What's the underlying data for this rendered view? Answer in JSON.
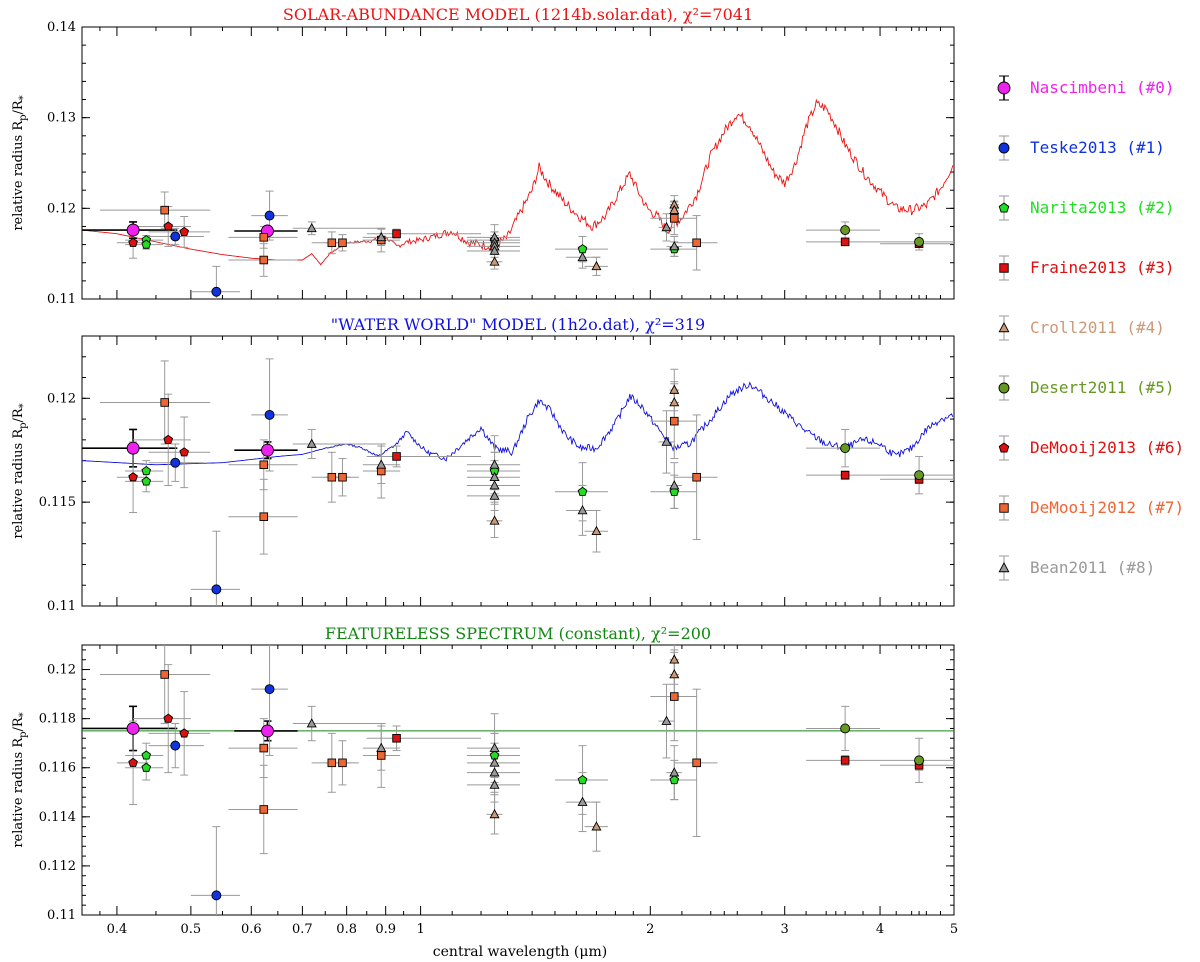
{
  "figure": {
    "xlabel": "central wavelength (μm)",
    "ylabel": "relative radius R",
    "ylabel_sub": "p",
    "ylabel_tail": "/R",
    "ylabel_sub2": "*"
  },
  "colors": {
    "solar": "#ee1111",
    "water": "#1111dd",
    "flat": "#118811",
    "Nascimbeni": "#ee22ee",
    "Teske2013": "#1133dd",
    "Narita2013": "#22dd22",
    "Fraine2013": "#dd1111",
    "Croll2011": "#cc9977",
    "Desert2011": "#669922",
    "DeMooij2013": "#dd1111",
    "DeMooij2012": "#ee6633",
    "Bean2011": "#999999"
  },
  "legend": [
    {
      "key": "Nascimbeni",
      "label": "Nascimbeni (#0)",
      "marker": "circle-big"
    },
    {
      "key": "Teske2013",
      "label": "Teske2013 (#1)",
      "marker": "circle"
    },
    {
      "key": "Narita2013",
      "label": "Narita2013 (#2)",
      "marker": "pentagon"
    },
    {
      "key": "Fraine2013",
      "label": "Fraine2013 (#3)",
      "marker": "square"
    },
    {
      "key": "Croll2011",
      "label": "Croll2011 (#4)",
      "marker": "triangle"
    },
    {
      "key": "Desert2011",
      "label": "Desert2011 (#5)",
      "marker": "circle"
    },
    {
      "key": "DeMooij2013",
      "label": "DeMooij2013 (#6)",
      "marker": "pentagon"
    },
    {
      "key": "DeMooij2012",
      "label": "DeMooij2012 (#7)",
      "marker": "square"
    },
    {
      "key": "Bean2011",
      "label": "Bean2011 (#8)",
      "marker": "triangle"
    }
  ],
  "chart_data": [
    {
      "type": "scatter",
      "title": "SOLAR-ABUNDANCE MODEL (1214b.solar.dat), χ²=7041",
      "model": "solar",
      "xscale": "log",
      "xlim": [
        0.36,
        5.0
      ],
      "ylim": [
        0.11,
        0.14
      ],
      "yticks": [
        0.11,
        0.12,
        0.13,
        0.14
      ],
      "ytick_labels": [
        "0.11",
        "0.12",
        "0.13",
        "0.14"
      ]
    },
    {
      "type": "scatter",
      "title": "\"WATER WORLD\" MODEL (1h2o.dat), χ²=319",
      "model": "water",
      "xscale": "log",
      "xlim": [
        0.36,
        5.0
      ],
      "ylim": [
        0.11,
        0.123
      ],
      "yticks": [
        0.11,
        0.115,
        0.12
      ],
      "ytick_labels": [
        "0.11",
        "0.115",
        "0.12"
      ]
    },
    {
      "type": "scatter",
      "title": "FEATURELESS SPECTRUM (constant), χ²=200",
      "model": "flat",
      "flat_value": 0.1175,
      "xscale": "log",
      "xlim": [
        0.36,
        5.0
      ],
      "ylim": [
        0.11,
        0.121
      ],
      "yticks": [
        0.11,
        0.112,
        0.114,
        0.116,
        0.118,
        0.12
      ],
      "ytick_labels": [
        "0.11",
        "0.112",
        "0.114",
        "0.116",
        "0.118",
        "0.12"
      ],
      "xticks": [
        0.4,
        0.5,
        0.6,
        0.7,
        0.8,
        0.9,
        1,
        2,
        3,
        4,
        5
      ],
      "xtick_labels": [
        "0.4",
        "0.5",
        "0.6",
        "0.7",
        "0.8",
        "0.9",
        "1",
        "2",
        "3",
        "4",
        "5"
      ]
    }
  ],
  "points": [
    {
      "s": "Nascimbeni",
      "x": 0.42,
      "xlo": 0.36,
      "xhi": 0.48,
      "y": 0.1176,
      "e": 0.0009
    },
    {
      "s": "Nascimbeni",
      "x": 0.63,
      "xlo": 0.57,
      "xhi": 0.69,
      "y": 0.1175,
      "e": 0.0004
    },
    {
      "s": "Teske2013",
      "x": 0.477,
      "xlo": 0.44,
      "xhi": 0.52,
      "y": 0.1169,
      "e": 0.0009
    },
    {
      "s": "Teske2013",
      "x": 0.54,
      "xlo": 0.5,
      "xhi": 0.58,
      "y": 0.1108,
      "e": 0.0028
    },
    {
      "s": "Teske2013",
      "x": 0.634,
      "xlo": 0.6,
      "xhi": 0.67,
      "y": 0.1192,
      "e": 0.0027
    },
    {
      "s": "Narita2013",
      "x": 0.437,
      "xlo": 0.41,
      "xhi": 0.46,
      "y": 0.1165,
      "e": 0.0005
    },
    {
      "s": "Narita2013",
      "x": 0.437,
      "xlo": 0.41,
      "xhi": 0.46,
      "y": 0.116,
      "e": 0.0005
    },
    {
      "s": "Narita2013",
      "x": 1.25,
      "xlo": 1.15,
      "xhi": 1.35,
      "y": 0.1165,
      "e": 0.0009
    },
    {
      "s": "Narita2013",
      "x": 1.63,
      "xlo": 1.5,
      "xhi": 1.76,
      "y": 0.1155,
      "e": 0.0014
    },
    {
      "s": "Narita2013",
      "x": 2.15,
      "xlo": 2.0,
      "xhi": 2.3,
      "y": 0.1155,
      "e": 0.0008
    },
    {
      "s": "Fraine2013",
      "x": 0.93,
      "xlo": 0.85,
      "xhi": 1.2,
      "y": 0.1172,
      "e": 0.0005
    },
    {
      "s": "Fraine2013",
      "x": 3.6,
      "xlo": 3.2,
      "xhi": 4.0,
      "y": 0.1163,
      "e": 0.0002
    },
    {
      "s": "Fraine2013",
      "x": 4.5,
      "xlo": 4.0,
      "xhi": 5.0,
      "y": 0.1161,
      "e": 0.0002
    },
    {
      "s": "Croll2011",
      "x": 2.15,
      "xlo": 2.12,
      "xhi": 2.18,
      "y": 0.1204,
      "e": 0.001
    },
    {
      "s": "Croll2011",
      "x": 2.15,
      "xlo": 2.12,
      "xhi": 2.18,
      "y": 0.1198,
      "e": 0.001
    },
    {
      "s": "Croll2011",
      "x": 1.25,
      "xlo": 1.22,
      "xhi": 1.28,
      "y": 0.1141,
      "e": 0.0008
    },
    {
      "s": "Croll2011",
      "x": 1.7,
      "xlo": 1.64,
      "xhi": 1.76,
      "y": 0.1136,
      "e": 0.001
    },
    {
      "s": "Desert2011",
      "x": 3.6,
      "xlo": 3.2,
      "xhi": 4.0,
      "y": 0.1176,
      "e": 0.0009
    },
    {
      "s": "Desert2011",
      "x": 4.5,
      "xlo": 4.0,
      "xhi": 5.0,
      "y": 0.1163,
      "e": 0.0009
    },
    {
      "s": "DeMooij2013",
      "x": 0.42,
      "xlo": 0.4,
      "xhi": 0.44,
      "y": 0.1162,
      "e": 0.0017
    },
    {
      "s": "DeMooij2013",
      "x": 0.467,
      "xlo": 0.42,
      "xhi": 0.5,
      "y": 0.118,
      "e": 0.0022
    },
    {
      "s": "DeMooij2013",
      "x": 0.49,
      "xlo": 0.44,
      "xhi": 0.53,
      "y": 0.1174,
      "e": 0.0017
    },
    {
      "s": "DeMooij2012",
      "x": 0.462,
      "xlo": 0.38,
      "xhi": 0.53,
      "y": 0.1198,
      "e": 0.002
    },
    {
      "s": "DeMooij2012",
      "x": 0.623,
      "xlo": 0.56,
      "xhi": 0.69,
      "y": 0.1168,
      "e": 0.0012
    },
    {
      "s": "DeMooij2012",
      "x": 0.623,
      "xlo": 0.56,
      "xhi": 0.69,
      "y": 0.1143,
      "e": 0.0018
    },
    {
      "s": "DeMooij2012",
      "x": 0.765,
      "xlo": 0.72,
      "xhi": 0.81,
      "y": 0.1162,
      "e": 0.0012
    },
    {
      "s": "DeMooij2012",
      "x": 0.79,
      "xlo": 0.75,
      "xhi": 0.83,
      "y": 0.1162,
      "e": 0.0009
    },
    {
      "s": "DeMooij2012",
      "x": 0.888,
      "xlo": 0.84,
      "xhi": 0.94,
      "y": 0.1165,
      "e": 0.0013
    },
    {
      "s": "DeMooij2012",
      "x": 2.15,
      "xlo": 2.0,
      "xhi": 2.3,
      "y": 0.1189,
      "e": 0.0018
    },
    {
      "s": "DeMooij2012",
      "x": 2.3,
      "xlo": 2.15,
      "xhi": 2.45,
      "y": 0.1162,
      "e": 0.003
    },
    {
      "s": "Bean2011",
      "x": 0.72,
      "xlo": 0.68,
      "xhi": 0.9,
      "y": 0.1178,
      "e": 0.0007
    },
    {
      "s": "Bean2011",
      "x": 0.888,
      "xlo": 0.84,
      "xhi": 0.94,
      "y": 0.1168,
      "e": 0.0009
    },
    {
      "s": "Bean2011",
      "x": 1.25,
      "xlo": 1.15,
      "xhi": 1.35,
      "y": 0.1168,
      "e": 0.0014
    },
    {
      "s": "Bean2011",
      "x": 1.25,
      "xlo": 1.15,
      "xhi": 1.35,
      "y": 0.1162,
      "e": 0.0012
    },
    {
      "s": "Bean2011",
      "x": 1.25,
      "xlo": 1.15,
      "xhi": 1.35,
      "y": 0.1158,
      "e": 0.0012
    },
    {
      "s": "Bean2011",
      "x": 1.25,
      "xlo": 1.15,
      "xhi": 1.35,
      "y": 0.1153,
      "e": 0.0012
    },
    {
      "s": "Bean2011",
      "x": 1.63,
      "xlo": 1.55,
      "xhi": 1.72,
      "y": 0.1146,
      "e": 0.0012
    },
    {
      "s": "Bean2011",
      "x": 2.1,
      "xlo": 2.05,
      "xhi": 2.15,
      "y": 0.1179,
      "e": 0.0015
    },
    {
      "s": "Bean2011",
      "x": 2.15,
      "xlo": 2.1,
      "xhi": 2.2,
      "y": 0.1158,
      "e": 0.0011
    }
  ],
  "model_curves": {
    "solar": [
      [
        0.36,
        0.1176
      ],
      [
        0.4,
        0.1172
      ],
      [
        0.45,
        0.1163
      ],
      [
        0.5,
        0.1155
      ],
      [
        0.55,
        0.1149
      ],
      [
        0.6,
        0.1145
      ],
      [
        0.65,
        0.1143
      ],
      [
        0.7,
        0.1143
      ],
      [
        0.72,
        0.115
      ],
      [
        0.74,
        0.1138
      ],
      [
        0.76,
        0.115
      ],
      [
        0.8,
        0.1162
      ],
      [
        0.86,
        0.1164
      ],
      [
        0.9,
        0.1168
      ],
      [
        0.93,
        0.1158
      ],
      [
        0.96,
        0.1163
      ],
      [
        1.0,
        0.1165
      ],
      [
        1.05,
        0.117
      ],
      [
        1.1,
        0.1175
      ],
      [
        1.13,
        0.1168
      ],
      [
        1.16,
        0.1162
      ],
      [
        1.2,
        0.116
      ],
      [
        1.25,
        0.1158
      ],
      [
        1.3,
        0.1168
      ],
      [
        1.35,
        0.1195
      ],
      [
        1.4,
        0.122
      ],
      [
        1.43,
        0.1245
      ],
      [
        1.47,
        0.1228
      ],
      [
        1.55,
        0.1205
      ],
      [
        1.62,
        0.119
      ],
      [
        1.68,
        0.118
      ],
      [
        1.75,
        0.1192
      ],
      [
        1.82,
        0.1218
      ],
      [
        1.88,
        0.1238
      ],
      [
        1.93,
        0.1218
      ],
      [
        1.98,
        0.12
      ],
      [
        2.05,
        0.119
      ],
      [
        2.1,
        0.1175
      ],
      [
        2.2,
        0.119
      ],
      [
        2.3,
        0.1215
      ],
      [
        2.4,
        0.1258
      ],
      [
        2.5,
        0.1285
      ],
      [
        2.6,
        0.1305
      ],
      [
        2.7,
        0.1292
      ],
      [
        2.8,
        0.1265
      ],
      [
        2.9,
        0.124
      ],
      [
        3.0,
        0.1228
      ],
      [
        3.1,
        0.125
      ],
      [
        3.2,
        0.129
      ],
      [
        3.3,
        0.1315
      ],
      [
        3.4,
        0.131
      ],
      [
        3.5,
        0.1292
      ],
      [
        3.6,
        0.127
      ],
      [
        3.8,
        0.124
      ],
      [
        4.0,
        0.1218
      ],
      [
        4.2,
        0.12
      ],
      [
        4.4,
        0.1198
      ],
      [
        4.6,
        0.1203
      ],
      [
        4.8,
        0.1222
      ],
      [
        5.0,
        0.125
      ]
    ],
    "water": [
      [
        0.36,
        0.117
      ],
      [
        0.45,
        0.1168
      ],
      [
        0.55,
        0.1169
      ],
      [
        0.65,
        0.1172
      ],
      [
        0.7,
        0.1173
      ],
      [
        0.75,
        0.1176
      ],
      [
        0.8,
        0.1178
      ],
      [
        0.84,
        0.1176
      ],
      [
        0.88,
        0.1172
      ],
      [
        0.93,
        0.1178
      ],
      [
        0.96,
        0.1184
      ],
      [
        0.98,
        0.118
      ],
      [
        1.02,
        0.1174
      ],
      [
        1.08,
        0.1171
      ],
      [
        1.15,
        0.118
      ],
      [
        1.2,
        0.1186
      ],
      [
        1.25,
        0.1176
      ],
      [
        1.32,
        0.1174
      ],
      [
        1.38,
        0.119
      ],
      [
        1.43,
        0.1199
      ],
      [
        1.48,
        0.1194
      ],
      [
        1.55,
        0.1182
      ],
      [
        1.62,
        0.1176
      ],
      [
        1.7,
        0.1176
      ],
      [
        1.8,
        0.1188
      ],
      [
        1.88,
        0.1201
      ],
      [
        1.95,
        0.1196
      ],
      [
        2.05,
        0.1185
      ],
      [
        2.15,
        0.1176
      ],
      [
        2.25,
        0.1178
      ],
      [
        2.4,
        0.119
      ],
      [
        2.55,
        0.1202
      ],
      [
        2.7,
        0.1207
      ],
      [
        2.85,
        0.12
      ],
      [
        3.0,
        0.1193
      ],
      [
        3.2,
        0.1184
      ],
      [
        3.4,
        0.1178
      ],
      [
        3.6,
        0.1176
      ],
      [
        3.8,
        0.118
      ],
      [
        4.0,
        0.1178
      ],
      [
        4.2,
        0.1172
      ],
      [
        4.4,
        0.1176
      ],
      [
        4.6,
        0.1185
      ],
      [
        4.8,
        0.119
      ],
      [
        5.0,
        0.1192
      ]
    ]
  }
}
